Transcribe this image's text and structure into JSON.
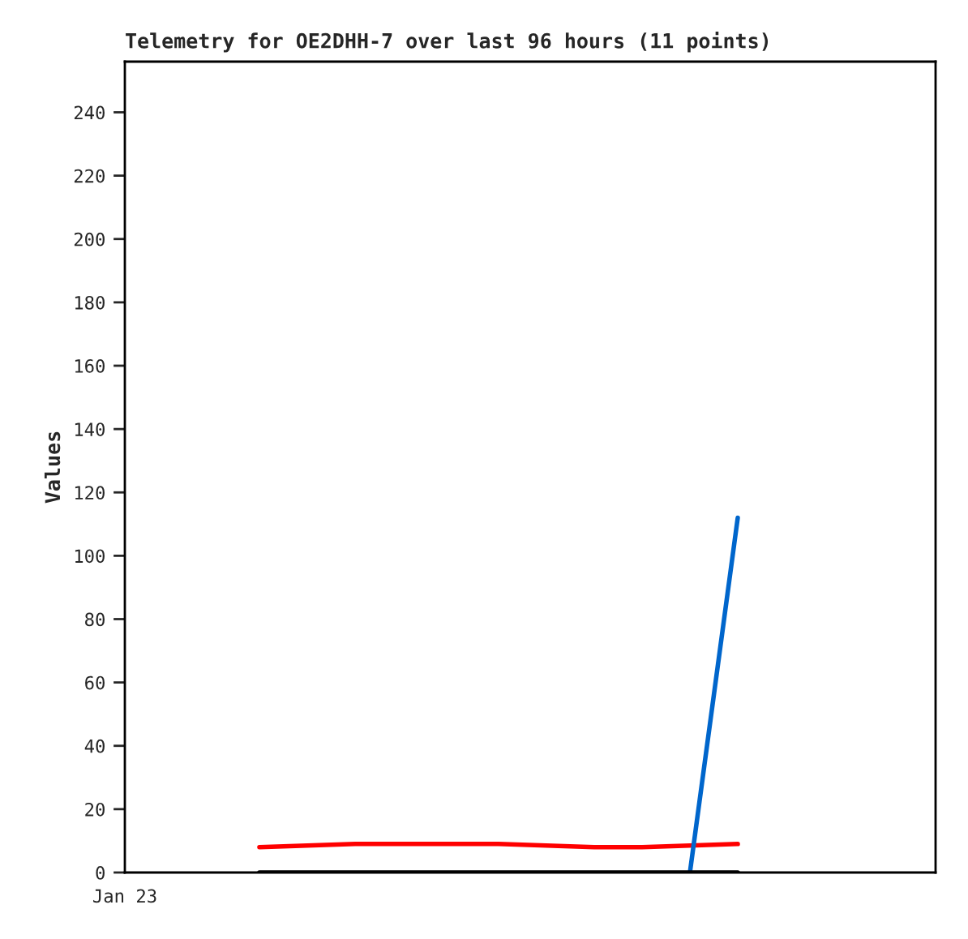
{
  "chart_data": {
    "type": "line",
    "title": "Telemetry for OE2DHH-7 over last 96 hours (11 points)",
    "ylabel": "Values",
    "categories": [
      null,
      null,
      null,
      null,
      null,
      null,
      null,
      null,
      null,
      null,
      null
    ],
    "series": [
      {
        "color": "#ff0000",
        "values": [
          8,
          8.5,
          9,
          9,
          9,
          9,
          8.5,
          8,
          8,
          8.5,
          9
        ]
      },
      {
        "color": "#0066cc",
        "values": [
          null,
          null,
          null,
          null,
          null,
          null,
          null,
          null,
          null,
          0,
          112
        ]
      },
      {
        "color": "#000000",
        "values": [
          0,
          0,
          0,
          0,
          0,
          0,
          0,
          0,
          0,
          0,
          0
        ]
      }
    ],
    "annotations": [
      "Jan 23"
    ],
    "ylim": [
      0,
      256
    ],
    "yticks": [
      0,
      20,
      40,
      60,
      80,
      100,
      120,
      140,
      160,
      180,
      200,
      220,
      240
    ],
    "grid": false,
    "legend": false,
    "marker": "none",
    "line_style": "solid"
  }
}
